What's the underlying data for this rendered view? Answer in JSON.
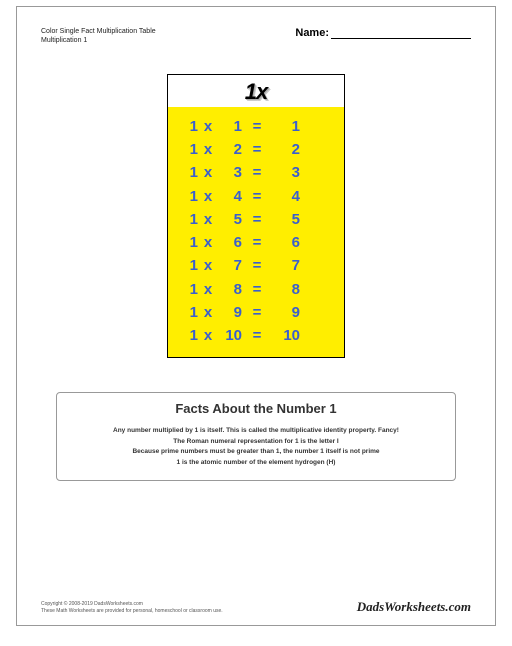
{
  "header": {
    "title_line1": "Color Single Fact Multiplication Table",
    "title_line2": "Multiplication 1",
    "name_label": "Name:"
  },
  "table": {
    "heading": "1x",
    "background_color": "#ffee00",
    "text_color": "#3a5fcd",
    "border_color": "#000000",
    "font_size_pt": 15,
    "rows": [
      {
        "a": "1",
        "op": "x",
        "b": "1",
        "eq": "=",
        "ans": "1"
      },
      {
        "a": "1",
        "op": "x",
        "b": "2",
        "eq": "=",
        "ans": "2"
      },
      {
        "a": "1",
        "op": "x",
        "b": "3",
        "eq": "=",
        "ans": "3"
      },
      {
        "a": "1",
        "op": "x",
        "b": "4",
        "eq": "=",
        "ans": "4"
      },
      {
        "a": "1",
        "op": "x",
        "b": "5",
        "eq": "=",
        "ans": "5"
      },
      {
        "a": "1",
        "op": "x",
        "b": "6",
        "eq": "=",
        "ans": "6"
      },
      {
        "a": "1",
        "op": "x",
        "b": "7",
        "eq": "=",
        "ans": "7"
      },
      {
        "a": "1",
        "op": "x",
        "b": "8",
        "eq": "=",
        "ans": "8"
      },
      {
        "a": "1",
        "op": "x",
        "b": "9",
        "eq": "=",
        "ans": "9"
      },
      {
        "a": "1",
        "op": "x",
        "b": "10",
        "eq": "=",
        "ans": "10"
      }
    ]
  },
  "facts": {
    "title": "Facts About the Number 1",
    "lines": [
      "Any number multiplied by 1 is itself. This is called the multiplicative identity property. Fancy!",
      "The Roman numeral representation for 1 is the letter I",
      "Because prime numbers must be greater than 1, the number 1 itself is not prime",
      "1 is the atomic number of the element hydrogen (H)"
    ]
  },
  "footer": {
    "copyright": "Copyright © 2008-2019 DadsWorksheets.com",
    "tagline": "These Math Worksheets are provided for personal, homeschool or classroom use.",
    "brand": "DadsWorksheets.com"
  }
}
